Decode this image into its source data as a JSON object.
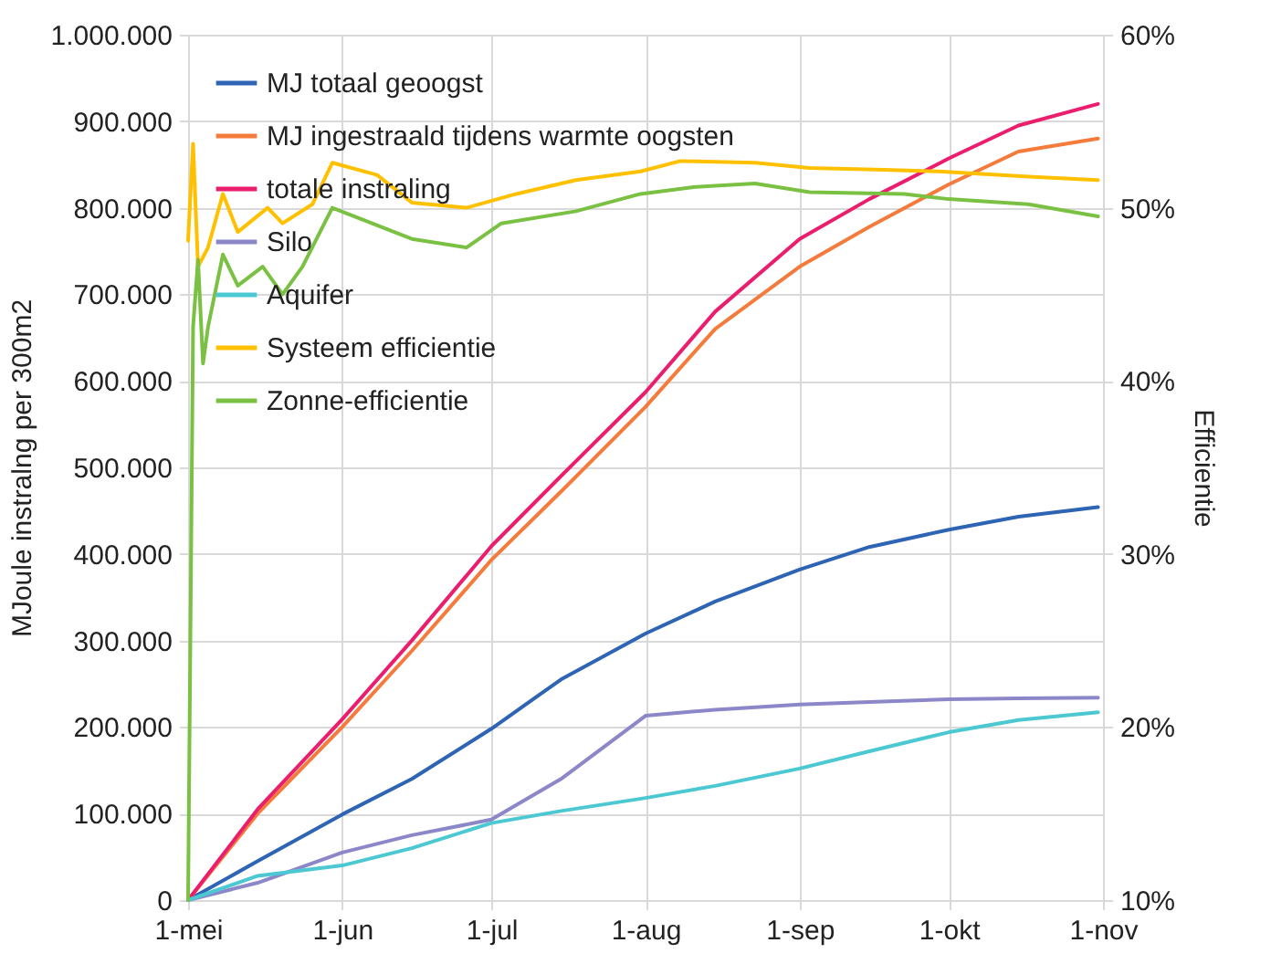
{
  "chart_data": {
    "type": "line",
    "xlabel": null,
    "ylabel": "MJoule instralng per 300m2",
    "y2label": "Efficientie",
    "xlim": [
      "--05-01",
      "--11-01"
    ],
    "xticks": [
      {
        "value": "--05-01",
        "label": "1-mei"
      },
      {
        "value": "--06-01",
        "label": "1-jun"
      },
      {
        "value": "--07-01",
        "label": "1-jul"
      },
      {
        "value": "--08-01",
        "label": "1-aug"
      },
      {
        "value": "--09-01",
        "label": "1-sep"
      },
      {
        "value": "--10-01",
        "label": "1-okt"
      },
      {
        "value": "--11-01",
        "label": "1-nov"
      }
    ],
    "ylim": [
      0,
      1000000
    ],
    "yticks": [
      0,
      {
        "value": 100000,
        "label": "100.000"
      },
      {
        "value": 200000,
        "label": "200.000"
      },
      {
        "value": 300000,
        "label": "300.000"
      },
      {
        "value": 400000,
        "label": "400.000"
      },
      {
        "value": 500000,
        "label": "500.000"
      },
      {
        "value": 600000,
        "label": "600.000"
      },
      {
        "value": 700000,
        "label": "700.000"
      },
      {
        "value": 800000,
        "label": "800.000"
      },
      {
        "value": 900000,
        "label": "900.000"
      },
      {
        "value": 1000000,
        "label": "1.000.000"
      }
    ],
    "y2lim": [
      10,
      60
    ],
    "y2ticks": [
      {
        "value": 10,
        "label": "10%"
      },
      {
        "value": 20,
        "label": "20%"
      },
      {
        "value": 30,
        "label": "30%"
      },
      {
        "value": 40,
        "label": "40%"
      },
      {
        "value": 50,
        "label": "50%"
      },
      {
        "value": 60,
        "label": "60%"
      }
    ],
    "grid": true,
    "legend": "top left",
    "marker": "none",
    "line_style": "solid",
    "x": [
      "--05-01",
      "--05-15",
      "--06-01",
      "--06-15",
      "--07-01",
      "--07-15",
      "--08-01",
      "--08-15",
      "--09-01",
      "--09-15",
      "--10-01",
      "--10-15",
      "--10-31"
    ],
    "series": [
      {
        "name": "MJ totaal geoogst",
        "color": "#2e64b4",
        "values": [
          0,
          45000,
          99000,
          140000,
          198000,
          255000,
          308000,
          345000,
          382000,
          408000,
          428000,
          443000,
          454000
        ]
      },
      {
        "name": "MJ ingestraald tijdens warmte oogsten",
        "color": "#f47b3b",
        "values": [
          0,
          100000,
          200000,
          288000,
          393000,
          472000,
          570000,
          660000,
          732000,
          778000,
          827000,
          865000,
          880000
        ]
      },
      {
        "name": "totale instraling",
        "color": "#eb1e6e",
        "values": [
          0,
          105000,
          209000,
          300000,
          409000,
          490000,
          587000,
          680000,
          764000,
          810000,
          857000,
          895000,
          920000
        ]
      },
      {
        "name": "Silo",
        "color": "#8c87c8",
        "values": [
          0,
          20000,
          55000,
          75000,
          93000,
          140000,
          213000,
          220000,
          226000,
          229000,
          232000,
          233000,
          234000
        ]
      },
      {
        "name": "Aquifer",
        "color": "#4bc8d2",
        "values": [
          0,
          28000,
          40000,
          60000,
          89000,
          103000,
          118000,
          132000,
          152000,
          172000,
          194000,
          208000,
          217000
        ]
      },
      {
        "name": "Systeem efficientie",
        "color": "#ffc000",
        "axis": "y2",
        "x": [
          "--05-01",
          "--05-02",
          "--05-03",
          "--05-05",
          "--05-08",
          "--05-11",
          "--05-17",
          "--05-20",
          "--05-26",
          "--05-30",
          "--06-08",
          "--06-15",
          "--06-26",
          "--07-06",
          "--07-18",
          "--07-31",
          "--08-08",
          "--08-23",
          "--09-03",
          "--09-18",
          "--09-29",
          "--10-17",
          "--10-31"
        ],
        "values": [
          48.1,
          53.7,
          46.6,
          47.7,
          50.8,
          48.6,
          50.0,
          49.1,
          50.2,
          52.6,
          51.9,
          50.3,
          50.0,
          50.8,
          51.6,
          52.1,
          52.7,
          52.6,
          52.3,
          52.2,
          52.1,
          51.8,
          51.6
        ]
      },
      {
        "name": "Zonne-efficientie",
        "color": "#7ac143",
        "axis": "y2",
        "x": [
          "--05-01",
          "--05-02",
          "--05-03",
          "--05-04",
          "--05-05",
          "--05-08",
          "--05-11",
          "--05-16",
          "--05-20",
          "--05-24",
          "--05-30",
          "--06-07",
          "--06-15",
          "--06-26",
          "--07-03",
          "--07-18",
          "--07-31",
          "--08-11",
          "--08-23",
          "--09-03",
          "--09-22",
          "--10-01",
          "--10-17",
          "--10-31"
        ],
        "values": [
          10,
          43.1,
          47.0,
          41.0,
          43.1,
          47.3,
          45.5,
          46.6,
          45.0,
          46.6,
          50.0,
          49.1,
          48.2,
          47.7,
          49.1,
          49.8,
          50.8,
          51.2,
          51.4,
          50.9,
          50.8,
          50.5,
          50.2,
          49.5
        ]
      }
    ]
  }
}
